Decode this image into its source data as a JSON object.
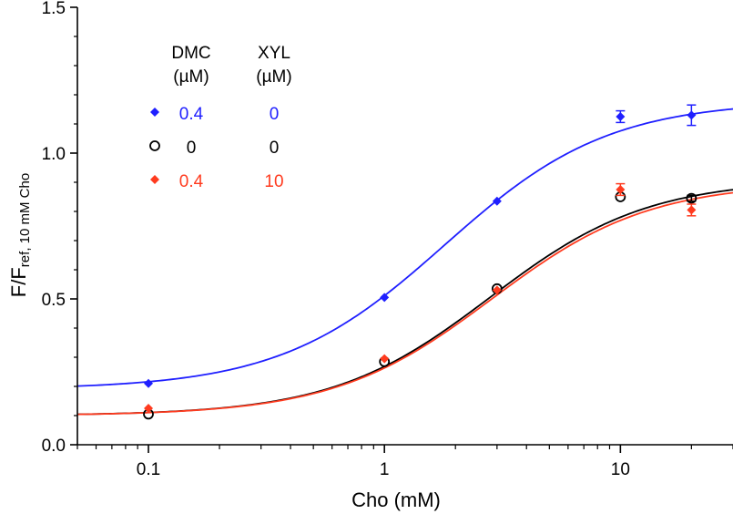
{
  "chart_data": {
    "type": "scatter",
    "xlabel": "Cho (mM)",
    "ylabel": {
      "main": "F/F",
      "sub": "ref, 10 mM Cho"
    },
    "xscale": "log",
    "xlim": [
      0.05,
      30
    ],
    "ylim": [
      0,
      1.5
    ],
    "x_ticks": [
      {
        "value": 0.1,
        "label": "0.1"
      },
      {
        "value": 1,
        "label": "1"
      },
      {
        "value": 10,
        "label": "10"
      }
    ],
    "y_ticks": [
      {
        "value": 0,
        "label": "0.0"
      },
      {
        "value": 0.5,
        "label": "0.5"
      },
      {
        "value": 1.0,
        "label": "1.0"
      },
      {
        "value": 1.5,
        "label": "1.5"
      }
    ],
    "grid": false,
    "legend": {
      "placement": "top-left",
      "headers": [
        [
          "DMC",
          "(µM)"
        ],
        [
          "XYL",
          "(µM)"
        ]
      ],
      "rows": [
        {
          "dmc": "0.4",
          "xyl": "0",
          "color": "#1f1fff",
          "marker": "diamond"
        },
        {
          "dmc": "0",
          "xyl": "0",
          "color": "#000000",
          "marker": "open-circle"
        },
        {
          "dmc": "0.4",
          "xyl": "10",
          "color": "#ff3b1f",
          "marker": "diamond"
        }
      ]
    },
    "series": [
      {
        "color": "#1f1fff",
        "marker": "diamond",
        "points": [
          {
            "x": 0.1,
            "y": 0.21,
            "err": 0.005
          },
          {
            "x": 1,
            "y": 0.505,
            "err": 0.005
          },
          {
            "x": 3,
            "y": 0.835,
            "err": 0.005
          },
          {
            "x": 10,
            "y": 1.125,
            "err": 0.02
          },
          {
            "x": 20,
            "y": 1.13,
            "err": 0.035
          }
        ],
        "fit": {
          "bottom": 0.19,
          "top": 1.18,
          "ec50": 1.8,
          "hill": 1.25
        }
      },
      {
        "color": "#000000",
        "marker": "open-circle",
        "points": [
          {
            "x": 0.1,
            "y": 0.105,
            "err": 0.005
          },
          {
            "x": 1,
            "y": 0.285,
            "err": 0.005
          },
          {
            "x": 3,
            "y": 0.535,
            "err": 0.005
          },
          {
            "x": 10,
            "y": 0.85,
            "err": 0.005
          },
          {
            "x": 20,
            "y": 0.845,
            "err": 0.01
          }
        ],
        "fit": {
          "bottom": 0.1,
          "top": 0.91,
          "ec50": 2.8,
          "hill": 1.3
        }
      },
      {
        "color": "#ff3b1f",
        "marker": "diamond",
        "points": [
          {
            "x": 0.1,
            "y": 0.125,
            "err": 0.005
          },
          {
            "x": 1,
            "y": 0.295,
            "err": 0.005
          },
          {
            "x": 3,
            "y": 0.53,
            "err": 0.005
          },
          {
            "x": 10,
            "y": 0.875,
            "err": 0.02
          },
          {
            "x": 20,
            "y": 0.805,
            "err": 0.02
          }
        ],
        "fit": {
          "bottom": 0.1,
          "top": 0.9,
          "ec50": 2.85,
          "hill": 1.3
        }
      }
    ]
  }
}
